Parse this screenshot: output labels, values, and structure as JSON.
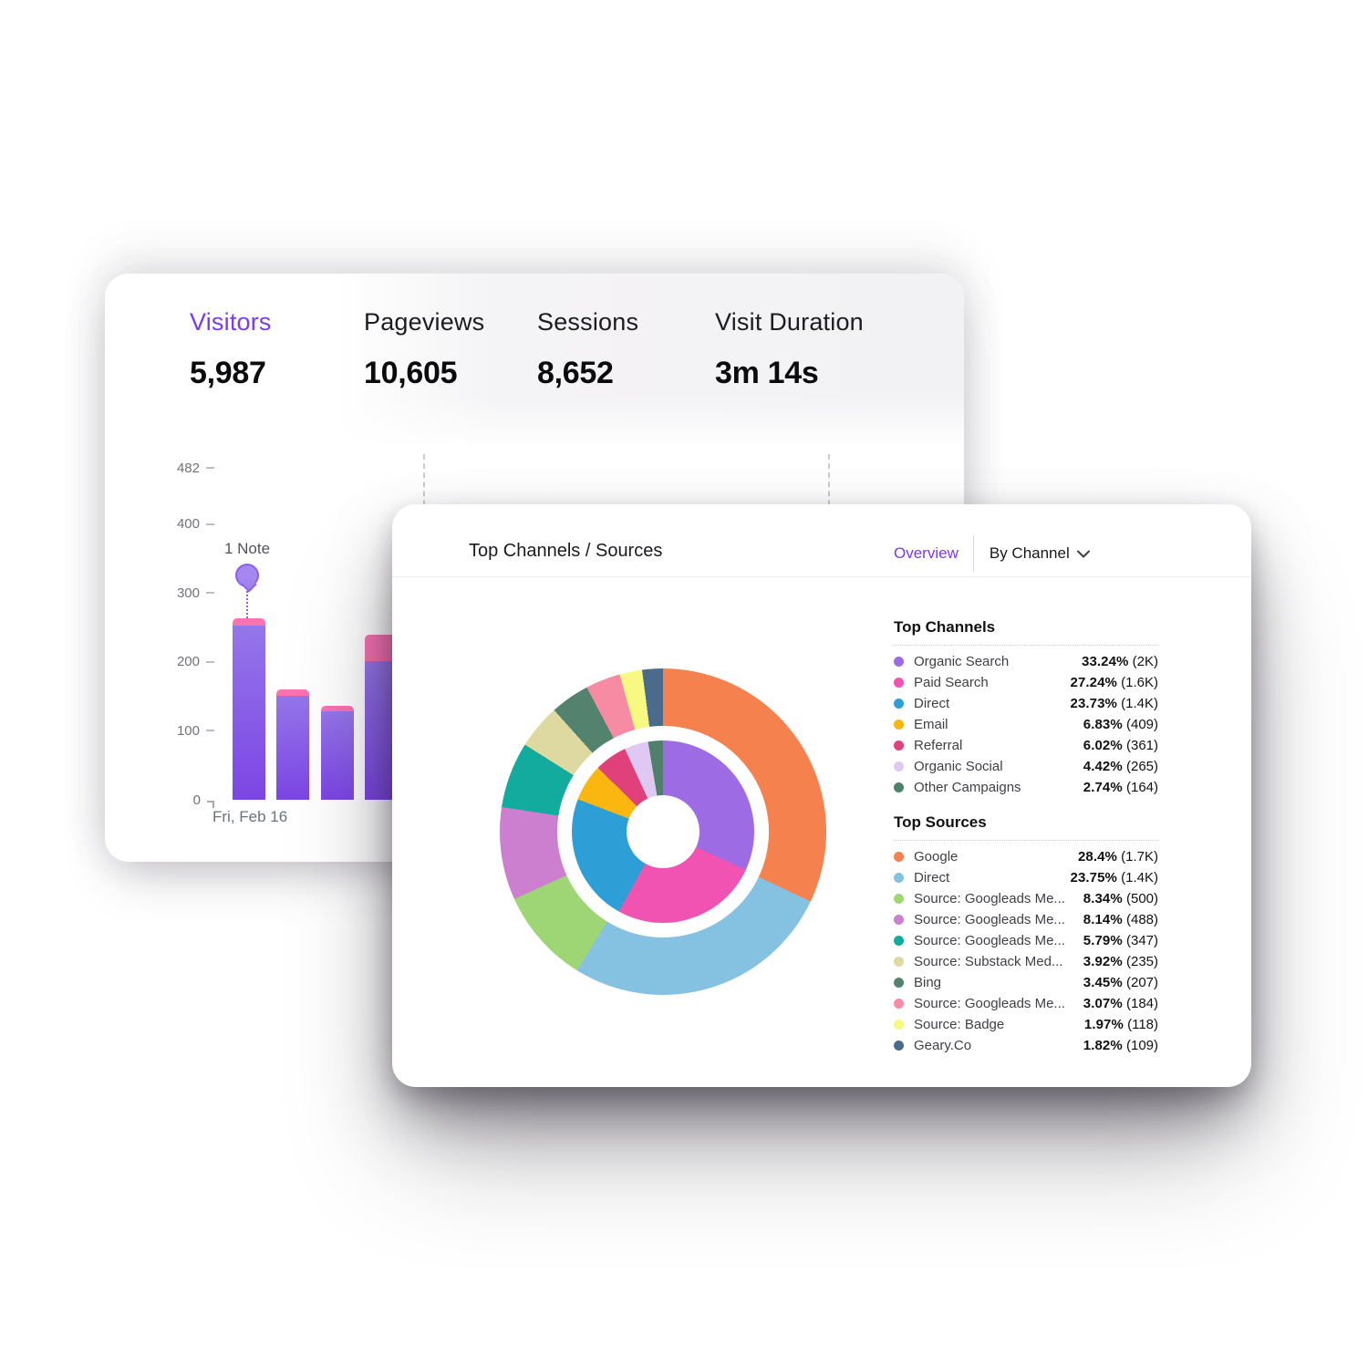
{
  "colors": {
    "accent_purple": "#7c3aed",
    "bar_purple_top": "#9576ea",
    "bar_purple_bottom": "#7c45e4",
    "bar_pink": "#f973b4",
    "note_fill": "#a687f0",
    "note_stroke": "#8a63e8"
  },
  "metrics": {
    "tabs": [
      {
        "label": "Visitors",
        "value": "5,987",
        "selected": true
      },
      {
        "label": "Pageviews",
        "value": "10,605",
        "selected": false
      },
      {
        "label": "Sessions",
        "value": "8,652",
        "selected": false
      },
      {
        "label": "Visit Duration",
        "value": "3m 14s",
        "selected": false
      }
    ]
  },
  "bar_chart": {
    "y_ticks": [
      482,
      400,
      300,
      200,
      100,
      0
    ],
    "y_max": 482,
    "note_label": "1 Note",
    "x_label": "Fri, Feb 16",
    "bars": [
      {
        "purple": 254,
        "pink": 10
      },
      {
        "purple": 151,
        "pink": 9
      },
      {
        "purple": 129,
        "pink": 8
      },
      {
        "purple": 201,
        "pink": 39
      }
    ]
  },
  "panel": {
    "title": "Top Channels / Sources",
    "overview_label": "Overview",
    "group_by_label": "By Channel",
    "icons": {
      "chevron_down": "v"
    }
  },
  "top_channels": {
    "heading": "Top Channels",
    "items": [
      {
        "label": "Organic Search",
        "color": "#9d6ce4",
        "value": 33.24,
        "percent": "33.24%",
        "count": "(2K)"
      },
      {
        "label": "Paid Search",
        "color": "#f053b2",
        "value": 27.24,
        "percent": "27.24%",
        "count": "(1.6K)"
      },
      {
        "label": "Direct",
        "color": "#2e9fd6",
        "value": 23.73,
        "percent": "23.73%",
        "count": "(1.4K)"
      },
      {
        "label": "Email",
        "color": "#fbb70f",
        "value": 6.83,
        "percent": "6.83%",
        "count": "(409)"
      },
      {
        "label": "Referral",
        "color": "#e0417b",
        "value": 6.02,
        "percent": "6.02%",
        "count": "(361)"
      },
      {
        "label": "Organic Social",
        "color": "#dfc9f2",
        "value": 4.42,
        "percent": "4.42%",
        "count": "(265)"
      },
      {
        "label": "Other Campaigns",
        "color": "#4e806c",
        "value": 2.74,
        "percent": "2.74%",
        "count": "(164)"
      }
    ]
  },
  "top_sources": {
    "heading": "Top Sources",
    "items": [
      {
        "label": "Google",
        "color": "#f5814f",
        "value": 28.4,
        "percent": "28.4%",
        "count": "(1.7K)"
      },
      {
        "label": "Direct",
        "color": "#85c2e2",
        "value": 23.75,
        "percent": "23.75%",
        "count": "(1.4K)"
      },
      {
        "label": "Source: Googleads Me...",
        "color": "#9ed676",
        "value": 8.34,
        "percent": "8.34%",
        "count": "(500)"
      },
      {
        "label": "Source: Googleads Me...",
        "color": "#cc7fcf",
        "value": 8.14,
        "percent": "8.14%",
        "count": "(488)"
      },
      {
        "label": "Source: Googleads Me...",
        "color": "#12ab9d",
        "value": 5.79,
        "percent": "5.79%",
        "count": "(347)"
      },
      {
        "label": "Source: Substack Med...",
        "color": "#ddd9a0",
        "value": 3.92,
        "percent": "3.92%",
        "count": "(235)"
      },
      {
        "label": "Bing",
        "color": "#53836e",
        "value": 3.45,
        "percent": "3.45%",
        "count": "(207)"
      },
      {
        "label": "Source: Googleads Me...",
        "color": "#f78ba3",
        "value": 3.07,
        "percent": "3.07%",
        "count": "(184)"
      },
      {
        "label": "Source: Badge",
        "color": "#f8f983",
        "value": 1.97,
        "percent": "1.97%",
        "count": "(118)"
      },
      {
        "label": "Geary.Co",
        "color": "#4b6b8c",
        "value": 1.82,
        "percent": "1.82%",
        "count": "(109)"
      }
    ]
  },
  "chart_data": [
    {
      "type": "bar",
      "title": "Visitors",
      "categories": [
        "Fri, Feb 16",
        "",
        "",
        ""
      ],
      "series": [
        {
          "name": "purple",
          "values": [
            254,
            151,
            129,
            201
          ]
        },
        {
          "name": "pink",
          "values": [
            10,
            9,
            8,
            39
          ]
        }
      ],
      "ylabel": "",
      "xlabel": "Fri, Feb 16",
      "ylim": [
        0,
        482
      ],
      "yticks": [
        482,
        400,
        300,
        200,
        100,
        0
      ],
      "annotations": [
        {
          "text": "1 Note",
          "bar_index": 0
        }
      ],
      "grid": "dashed-vertical",
      "legend_position": "none"
    },
    {
      "type": "pie",
      "title": "Top Channels / Sources",
      "rings": [
        {
          "name": "Top Channels",
          "position": "inner",
          "labels": [
            "Organic Search",
            "Paid Search",
            "Direct",
            "Email",
            "Referral",
            "Organic Social",
            "Other Campaigns"
          ],
          "values": [
            33.24,
            27.24,
            23.73,
            6.83,
            6.02,
            4.42,
            2.74
          ],
          "counts": [
            "2K",
            "1.6K",
            "1.4K",
            "409",
            "361",
            "265",
            "164"
          ]
        },
        {
          "name": "Top Sources",
          "position": "outer",
          "labels": [
            "Google",
            "Direct",
            "Source: Googleads Me...",
            "Source: Googleads Me...",
            "Source: Googleads Me...",
            "Source: Substack Med...",
            "Bing",
            "Source: Googleads Me...",
            "Source: Badge",
            "Geary.Co"
          ],
          "values": [
            28.4,
            23.75,
            8.34,
            8.14,
            5.79,
            3.92,
            3.45,
            3.07,
            1.97,
            1.82
          ],
          "counts": [
            "1.7K",
            "1.4K",
            "500",
            "488",
            "347",
            "235",
            "207",
            "184",
            "118",
            "109"
          ]
        }
      ],
      "legend_position": "right"
    }
  ]
}
